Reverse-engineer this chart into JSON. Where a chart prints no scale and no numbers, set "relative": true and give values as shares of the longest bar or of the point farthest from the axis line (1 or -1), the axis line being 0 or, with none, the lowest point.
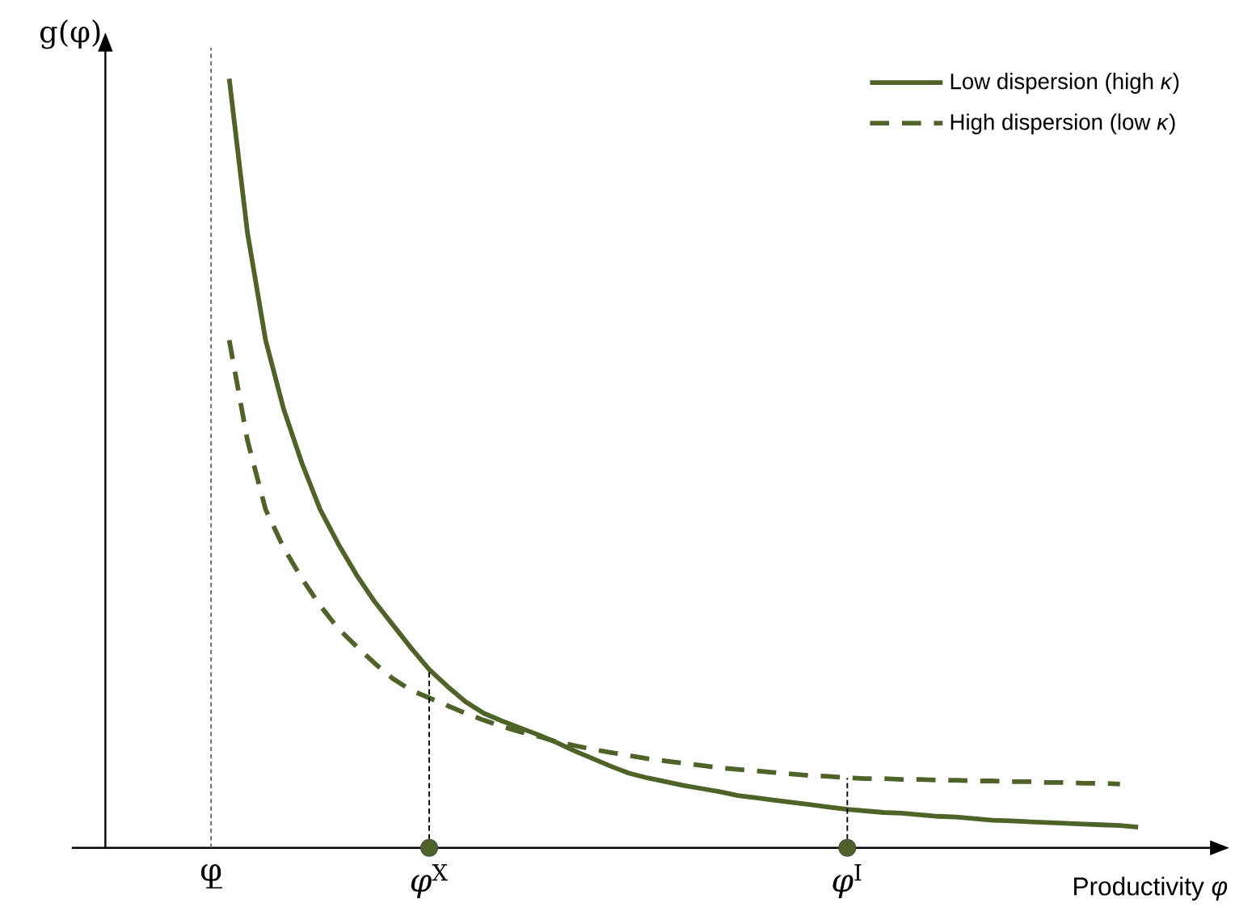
{
  "chart_data": {
    "type": "line",
    "relative": true,
    "ylabel": "g(φ)",
    "xlabel": "Productivity *φ*",
    "legend": "top right",
    "categories": [
      "φ̲",
      null,
      null,
      null,
      null,
      null,
      null,
      null,
      null,
      null,
      null,
      null,
      "*φ*$^{X}$",
      null,
      null,
      null,
      null,
      null,
      null,
      null,
      null,
      null,
      null,
      null,
      null,
      null,
      null,
      null,
      null,
      null,
      null,
      null,
      null,
      null,
      null,
      "*φ*$^{I}$",
      null,
      null,
      null,
      null,
      null,
      null,
      null,
      null,
      null,
      null,
      null,
      null,
      null,
      null,
      null,
      null
    ],
    "series": [
      {
        "name": "Low dispersion (high *κ*)",
        "color": "#4f6228",
        "line_style": "solid",
        "values": [
          null,
          1.0,
          0.8,
          0.66,
          0.57,
          0.5,
          0.44,
          0.395,
          0.355,
          0.32,
          0.29,
          0.26,
          0.232,
          0.21,
          0.19,
          0.175,
          0.165,
          0.156,
          0.147,
          0.137,
          0.126,
          0.116,
          0.106,
          0.097,
          0.091,
          0.086,
          0.081,
          0.077,
          0.073,
          0.068,
          0.065,
          0.062,
          0.059,
          0.056,
          0.053,
          0.05,
          0.048,
          0.046,
          0.045,
          0.043,
          0.041,
          0.04,
          0.038,
          0.036,
          0.035,
          0.034,
          0.033,
          0.032,
          0.031,
          0.03,
          0.029,
          0.027
        ]
      },
      {
        "name": "High dispersion (low *κ*)",
        "color": "#4f6228",
        "line_style": "dashed",
        "values": [
          null,
          0.66,
          0.53,
          0.44,
          0.39,
          0.35,
          0.315,
          0.285,
          0.262,
          0.24,
          0.22,
          0.205,
          0.195,
          0.185,
          0.175,
          0.166,
          0.158,
          0.151,
          0.145,
          0.138,
          0.133,
          0.128,
          0.124,
          0.12,
          0.116,
          0.113,
          0.11,
          0.107,
          0.104,
          0.102,
          0.1,
          0.098,
          0.096,
          0.094,
          0.093,
          0.091,
          0.09,
          0.09,
          0.089,
          0.089,
          0.088,
          0.088,
          0.087,
          0.087,
          0.086,
          0.086,
          0.085,
          0.085,
          0.084,
          0.084,
          0.083,
          null
        ]
      }
    ]
  }
}
